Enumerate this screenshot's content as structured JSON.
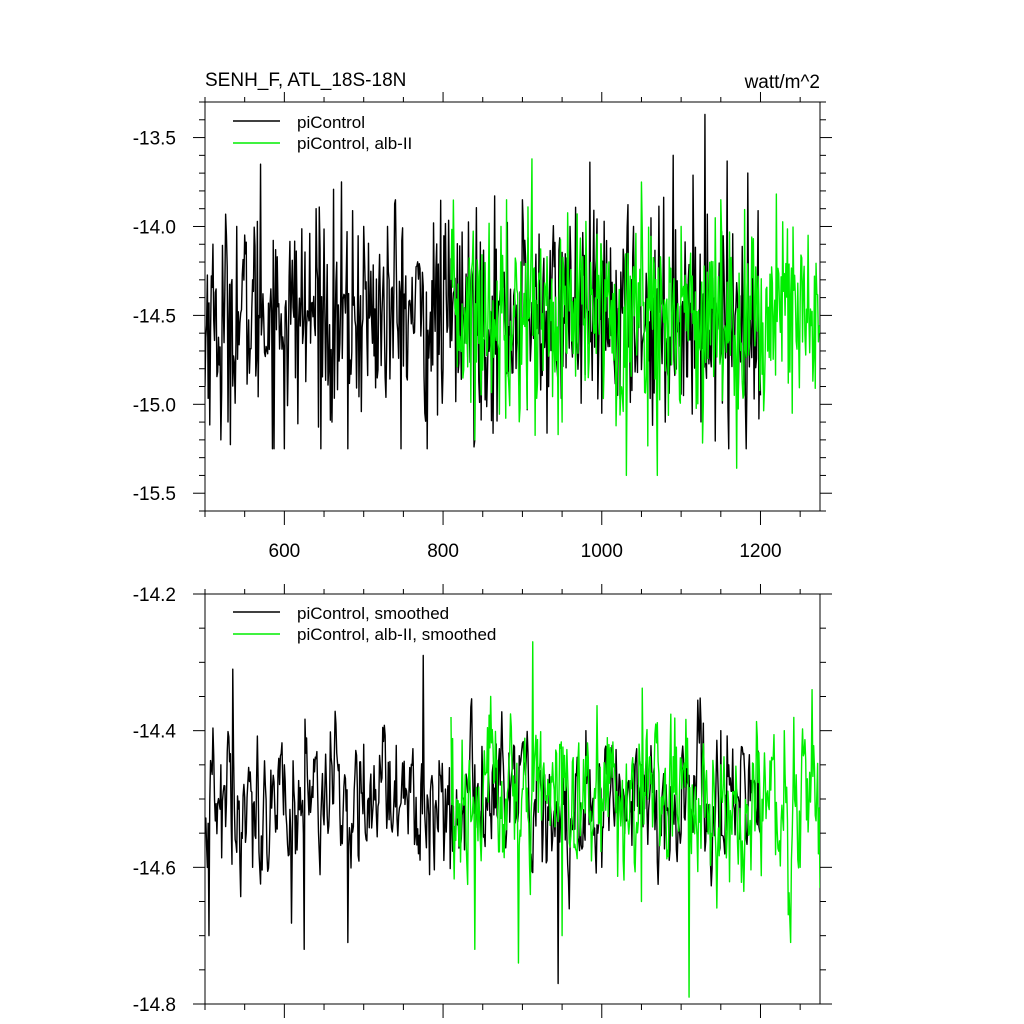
{
  "chart_data": [
    {
      "type": "line",
      "title": "SENH_F, ATL_18S-18N",
      "units": "watt/m^2",
      "xlim": [
        500,
        1275
      ],
      "ylim": [
        -15.6,
        -13.3
      ],
      "x_ticks": [
        600,
        800,
        1000,
        1200
      ],
      "x_tick_labels": [
        "600",
        "800",
        "1000",
        "1200"
      ],
      "y_ticks": [
        -15.5,
        -15.0,
        -14.5,
        -14.0,
        -13.5
      ],
      "y_tick_labels": [
        "-15.5",
        "-15.0",
        "-14.5",
        "-14.0",
        "-13.5"
      ],
      "legend_position": "top-left",
      "grid": false,
      "series": [
        {
          "name": "piControl",
          "color": "#000000",
          "x_range": [
            500,
            1200
          ],
          "mean": -14.5,
          "approx_min": -15.25,
          "approx_max": -13.37,
          "sample_values": [
            [
              500,
              -14.9
            ],
            [
              510,
              -14.1
            ],
            [
              520,
              -15.2
            ],
            [
              540,
              -14.0
            ],
            [
              560,
              -14.3
            ],
            [
              570,
              -13.65
            ],
            [
              600,
              -15.25
            ],
            [
              640,
              -13.9
            ],
            [
              660,
              -15.1
            ],
            [
              680,
              -15.25
            ],
            [
              700,
              -14.0
            ],
            [
              740,
              -13.85
            ],
            [
              780,
              -15.25
            ],
            [
              800,
              -14.8
            ],
            [
              840,
              -15.2
            ],
            [
              900,
              -13.85
            ],
            [
              960,
              -14.0
            ],
            [
              1000,
              -15.05
            ],
            [
              1040,
              -14.0
            ],
            [
              1080,
              -15.1
            ],
            [
              1090,
              -13.6
            ],
            [
              1130,
              -13.37
            ],
            [
              1160,
              -15.25
            ],
            [
              1200,
              -14.95
            ]
          ]
        },
        {
          "name": "piControl, alb-II",
          "color": "#00ee00",
          "x_range": [
            810,
            1275
          ],
          "mean": -14.5,
          "approx_min": -15.4,
          "approx_max": -13.6,
          "sample_values": [
            [
              810,
              -14.3
            ],
            [
              840,
              -15.2
            ],
            [
              880,
              -13.85
            ],
            [
              912,
              -13.62
            ],
            [
              950,
              -15.1
            ],
            [
              1000,
              -14.2
            ],
            [
              1050,
              -13.75
            ],
            [
              1070,
              -15.4
            ],
            [
              1100,
              -14.0
            ],
            [
              1150,
              -13.85
            ],
            [
              1200,
              -14.7
            ],
            [
              1240,
              -15.05
            ],
            [
              1260,
              -14.05
            ],
            [
              1275,
              -14.6
            ]
          ]
        }
      ]
    },
    {
      "type": "line",
      "title": "",
      "xlim": [
        500,
        1275
      ],
      "ylim": [
        -14.8,
        -14.2
      ],
      "x_ticks": [
        600,
        800,
        1000,
        1200
      ],
      "x_tick_labels": [],
      "y_ticks": [
        -14.8,
        -14.6,
        -14.4,
        -14.2
      ],
      "y_tick_labels": [
        "-14.8",
        "-14.6",
        "-14.4",
        "-14.2"
      ],
      "legend_position": "top-left",
      "grid": false,
      "series": [
        {
          "name": "piControl, smoothed",
          "color": "#000000",
          "x_range": [
            500,
            1200
          ],
          "mean": -14.5,
          "approx_min": -14.77,
          "approx_max": -14.29,
          "sample_values": [
            [
              500,
              -14.55
            ],
            [
              505,
              -14.7
            ],
            [
              520,
              -14.45
            ],
            [
              535,
              -14.31
            ],
            [
              560,
              -14.6
            ],
            [
              600,
              -14.45
            ],
            [
              625,
              -14.72
            ],
            [
              680,
              -14.71
            ],
            [
              700,
              -14.42
            ],
            [
              775,
              -14.29
            ],
            [
              800,
              -14.5
            ],
            [
              840,
              -14.45
            ],
            [
              880,
              -14.55
            ],
            [
              945,
              -14.77
            ],
            [
              980,
              -14.4
            ],
            [
              1000,
              -14.6
            ],
            [
              1050,
              -14.45
            ],
            [
              1100,
              -14.55
            ],
            [
              1150,
              -14.4
            ],
            [
              1200,
              -14.55
            ]
          ]
        },
        {
          "name": "piControl, alb-II, smoothed",
          "color": "#00ee00",
          "x_range": [
            810,
            1275
          ],
          "mean": -14.5,
          "approx_min": -14.79,
          "approx_max": -14.27,
          "sample_values": [
            [
              810,
              -14.38
            ],
            [
              840,
              -14.72
            ],
            [
              860,
              -14.35
            ],
            [
              895,
              -14.74
            ],
            [
              913,
              -14.27
            ],
            [
              950,
              -14.7
            ],
            [
              1000,
              -14.5
            ],
            [
              1050,
              -14.65
            ],
            [
              1110,
              -14.79
            ],
            [
              1150,
              -14.45
            ],
            [
              1200,
              -14.55
            ],
            [
              1230,
              -14.4
            ],
            [
              1250,
              -14.6
            ],
            [
              1265,
              -14.34
            ],
            [
              1275,
              -14.63
            ]
          ]
        }
      ]
    }
  ]
}
